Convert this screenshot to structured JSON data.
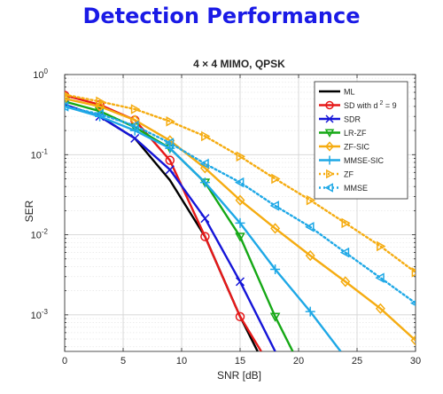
{
  "slide_title": "Detection Performance",
  "chart_data": {
    "type": "line",
    "title": "4 × 4 MIMO, QPSK",
    "xlabel": "SNR [dB]",
    "ylabel": "SER",
    "yscale": "log",
    "xlim": [
      0,
      30
    ],
    "ylim": [
      0.00035,
      1
    ],
    "xticks": [
      0,
      5,
      10,
      15,
      20,
      25,
      30
    ],
    "ytick_labels": [
      {
        "value": 1,
        "base": "10",
        "exp": "0"
      },
      {
        "value": 0.1,
        "base": "10",
        "exp": "-1"
      },
      {
        "value": 0.01,
        "base": "10",
        "exp": "-2"
      },
      {
        "value": 0.001,
        "base": "10",
        "exp": "-3"
      }
    ],
    "grid": true,
    "legend_position": "top-right",
    "series": [
      {
        "name": "ML",
        "color": "#000000",
        "style": "solid",
        "marker": "none",
        "x": [
          0,
          3,
          6,
          9,
          12,
          15,
          16.5
        ],
        "y": [
          0.42,
          0.3,
          0.16,
          0.048,
          0.0095,
          0.00095,
          0.00035
        ]
      },
      {
        "name": "SD with d",
        "name_sup": "2",
        "name_suffix": " = 9",
        "color": "#e61919",
        "style": "solid",
        "marker": "circle",
        "x": [
          0,
          3,
          6,
          9,
          12,
          15,
          16.8
        ],
        "y": [
          0.55,
          0.42,
          0.27,
          0.085,
          0.0095,
          0.00095,
          0.00035
        ]
      },
      {
        "name": "SDR",
        "color": "#1515d8",
        "style": "solid",
        "marker": "x",
        "x": [
          0,
          3,
          6,
          9,
          12,
          15,
          18
        ],
        "y": [
          0.42,
          0.3,
          0.16,
          0.065,
          0.016,
          0.0026,
          0.00035
        ]
      },
      {
        "name": "LR-ZF",
        "color": "#15a815",
        "style": "solid",
        "marker": "triangle-down",
        "x": [
          0,
          3,
          6,
          9,
          12,
          15,
          18,
          19.5
        ],
        "y": [
          0.46,
          0.35,
          0.22,
          0.12,
          0.045,
          0.0095,
          0.00095,
          0.00035
        ]
      },
      {
        "name": "ZF-SIC",
        "color": "#f5ac11",
        "style": "solid",
        "marker": "diamond",
        "x": [
          0,
          3,
          6,
          9,
          12,
          15,
          18,
          21,
          24,
          27,
          30
        ],
        "y": [
          0.5,
          0.4,
          0.27,
          0.15,
          0.068,
          0.027,
          0.012,
          0.0055,
          0.0026,
          0.0012,
          0.00048
        ]
      },
      {
        "name": "MMSE-SIC",
        "color": "#1ea8e6",
        "style": "solid",
        "marker": "plus",
        "x": [
          0,
          3,
          6,
          9,
          12,
          15,
          18,
          21,
          23.6
        ],
        "y": [
          0.4,
          0.3,
          0.2,
          0.12,
          0.045,
          0.014,
          0.0037,
          0.0011,
          0.00035
        ]
      },
      {
        "name": "ZF",
        "color": "#f5ac11",
        "style": "dotted",
        "marker": "triangle-right",
        "x": [
          0,
          3,
          6,
          9,
          12,
          15,
          18,
          21,
          24,
          27,
          30
        ],
        "y": [
          0.56,
          0.46,
          0.37,
          0.26,
          0.17,
          0.095,
          0.05,
          0.027,
          0.014,
          0.0072,
          0.0034
        ]
      },
      {
        "name": "MMSE",
        "color": "#1ea8e6",
        "style": "dotted",
        "marker": "triangle-left",
        "x": [
          0,
          3,
          6,
          9,
          12,
          15,
          18,
          21,
          24,
          27,
          30
        ],
        "y": [
          0.4,
          0.32,
          0.23,
          0.14,
          0.077,
          0.045,
          0.023,
          0.0125,
          0.006,
          0.0029,
          0.0014
        ]
      }
    ]
  }
}
